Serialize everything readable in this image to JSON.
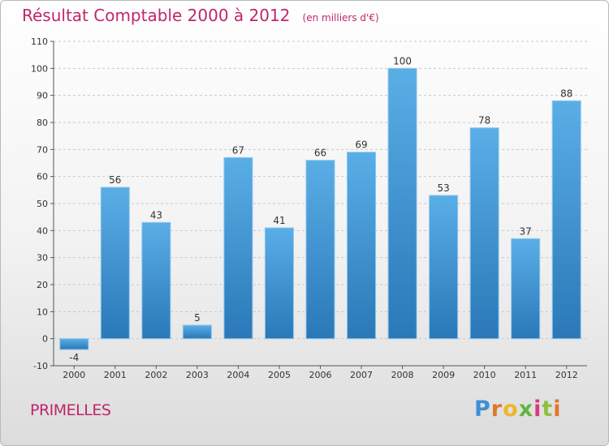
{
  "chart_data": {
    "type": "bar",
    "title": "Résultat Comptable 2000 à 2012",
    "subtitle": "(en milliers d'€)",
    "categories": [
      "2000",
      "2001",
      "2002",
      "2003",
      "2004",
      "2005",
      "2006",
      "2007",
      "2008",
      "2009",
      "2010",
      "2011",
      "2012"
    ],
    "values": [
      -4,
      56,
      43,
      5,
      67,
      41,
      66,
      69,
      100,
      53,
      78,
      37,
      88
    ],
    "ylim": [
      -10,
      110
    ],
    "yticks": [
      -10,
      0,
      10,
      20,
      30,
      40,
      50,
      60,
      70,
      80,
      90,
      100,
      110
    ],
    "xlabel": "",
    "ylabel": "",
    "grid": "horizontal dashed",
    "bar_color": "#3a90d0"
  },
  "footer": {
    "commune": "PRIMELLES",
    "brand_letters": [
      "P",
      "r",
      "o",
      "x",
      "i",
      "t",
      "i"
    ]
  },
  "colors": {
    "title": "#c0266a",
    "bar_top": "#5aaee6",
    "bar_bottom": "#2a78b8"
  }
}
